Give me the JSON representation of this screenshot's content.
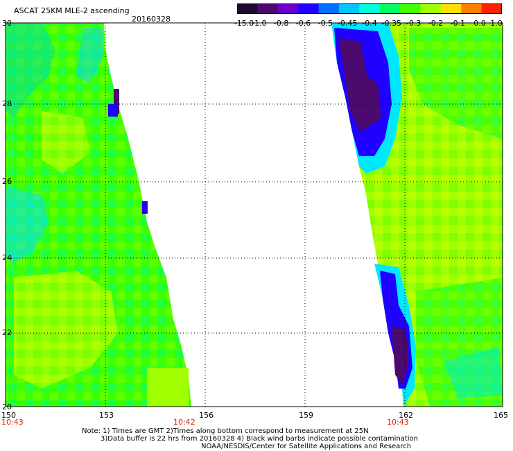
{
  "title": "ASCAT 25KM MLE-2 ascending",
  "date": "20160328",
  "colorbar": {
    "labels": [
      "-15.0",
      "-1.0",
      "-0.8",
      "-0.6",
      "-0.5",
      "-0.45",
      "-0.4",
      "-0.35",
      "-0.3",
      "-0.2",
      "-0.1",
      "0.0",
      "1.0"
    ],
    "colors": [
      "#1e0a2e",
      "#4a0a6e",
      "#6a00c8",
      "#2000ff",
      "#0070ff",
      "#00c8ff",
      "#00ffe0",
      "#00ff60",
      "#40ff00",
      "#a0ff00",
      "#ffe000",
      "#ff8000",
      "#ff2000"
    ]
  },
  "y_axis": {
    "labels": [
      "30",
      "28",
      "26",
      "24",
      "22",
      "20"
    ]
  },
  "x_axis": {
    "labels": [
      "150",
      "153",
      "156",
      "159",
      "162",
      "165"
    ]
  },
  "times": [
    "10:43",
    "10:42",
    "10:43"
  ],
  "notes": {
    "line1": "Note: 1) Times are GMT 2)Times along bottom correspond to measurement at 25N",
    "line2": "3)Data buffer is 22 hrs from 20160328 4) Black wind barbs indicate possible contamination",
    "line3": "NOAA/NESDIS/Center for Satellite Applications and Research"
  },
  "map_data": {
    "lon_range": [
      150,
      165
    ],
    "lat_range": [
      20,
      30
    ],
    "grid": "dotted",
    "swaths": [
      {
        "name": "",
        "edge": "east",
        "dominant_colors": [
          "#a0ff00",
          "#40ff00",
          "#00ffe0"
        ]
      },
      {
        "name": "",
        "edge": "west",
        "dominant_colors": [
          "#4a0a6e",
          "#2000ff",
          "#40ff00",
          "#a0ff00"
        ]
      }
    ]
  }
}
